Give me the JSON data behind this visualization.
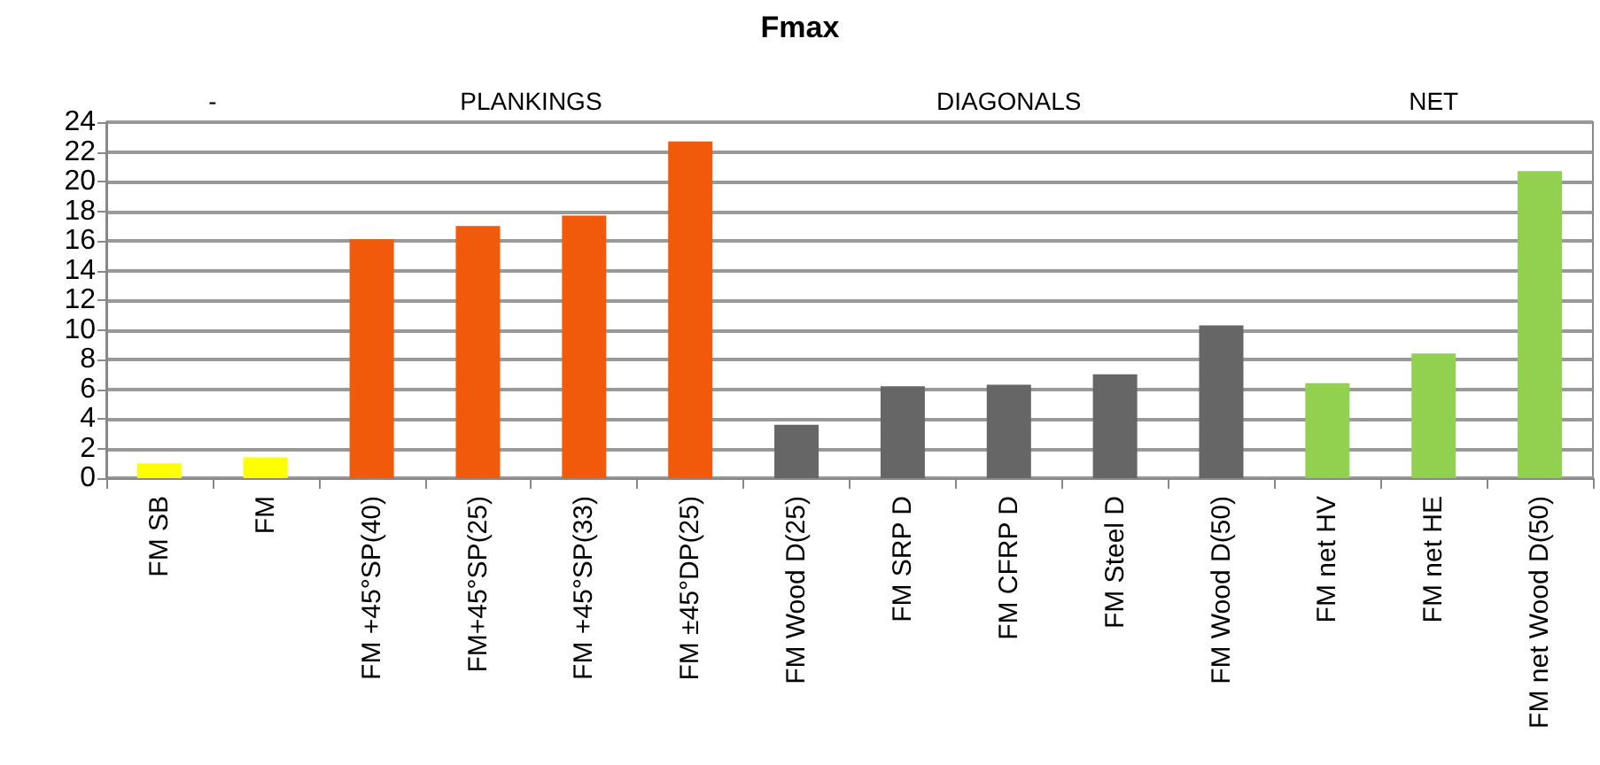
{
  "chart_data": {
    "type": "bar",
    "title": "Fmax",
    "categories": [
      "FM SB",
      "FM",
      "FM +45°SP(40)",
      "FM+45°SP(25)",
      "FM +45°SP(33)",
      "FM ±45°DP(25)",
      "FM Wood D(25)",
      "FM SRP D",
      "FM CFRP D",
      "FM Steel D",
      "FM Wood D(50)",
      "FM net HV",
      "FM net HE",
      "FM net Wood D(50)"
    ],
    "values": [
      1.0,
      1.4,
      16.1,
      17.0,
      17.7,
      22.7,
      3.6,
      6.2,
      6.3,
      7.0,
      10.3,
      6.4,
      8.4,
      20.7
    ],
    "colors": [
      "#ffff00",
      "#ffff00",
      "#f05a0a",
      "#f05a0a",
      "#f05a0a",
      "#f05a0a",
      "#666666",
      "#666666",
      "#666666",
      "#666666",
      "#666666",
      "#92d050",
      "#92d050",
      "#92d050"
    ],
    "ylim": [
      0,
      24
    ],
    "yticks": [
      0,
      2,
      4,
      6,
      8,
      10,
      12,
      14,
      16,
      18,
      20,
      22,
      24
    ],
    "grid": "y",
    "annotations": [
      "-",
      "PLANKINGS",
      "DIAGONALS",
      "NET"
    ]
  }
}
